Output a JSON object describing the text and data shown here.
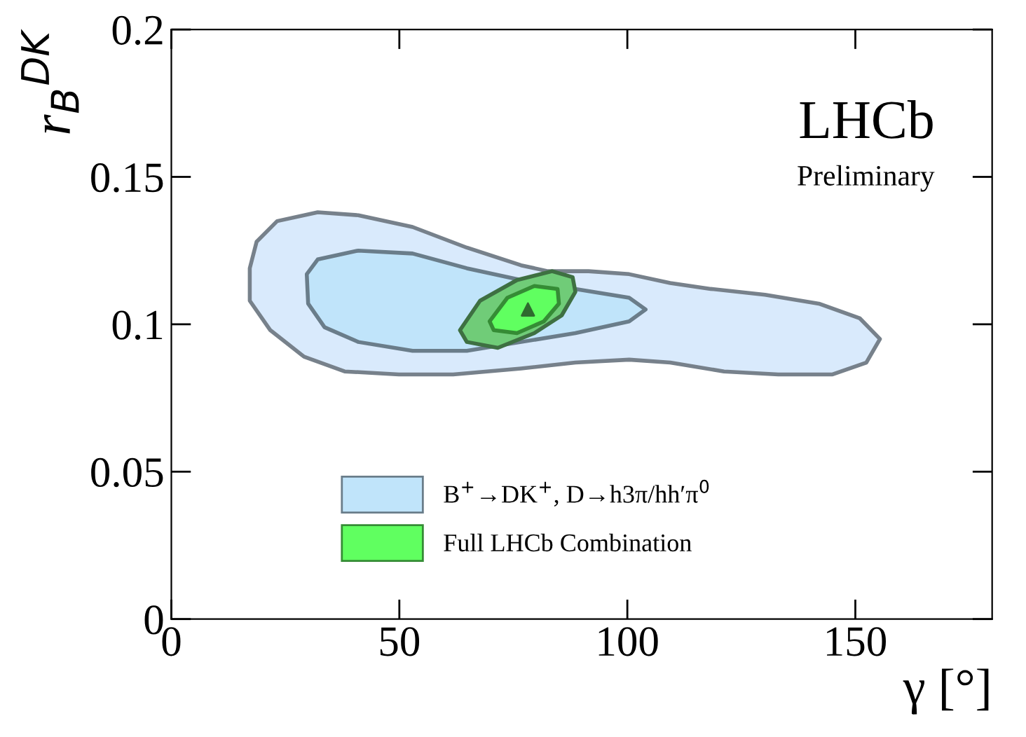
{
  "chart_data": {
    "type": "area",
    "xlabel": "γ [°]",
    "ylabel": "r$_{B}$$^{DK}$",
    "annotations": [
      "LHCb",
      "Preliminary"
    ],
    "xlim": [
      0,
      180
    ],
    "xticks": [
      0,
      50,
      100,
      150
    ],
    "ylim": [
      0,
      0.2
    ],
    "yticks": [
      0,
      0.05,
      0.1,
      0.15,
      0.2
    ],
    "grid": false,
    "legend": "bottom left",
    "series": [
      {
        "color": "#d9eafc",
        "x": [
          17.2,
          18.7,
          23.2,
          32.1,
          41.0,
          52.9,
          64.8,
          76.7,
          82.6,
          91.5,
          100.4,
          109.4,
          118.3,
          130.2,
          142.0,
          151.0,
          155.4,
          152.4,
          145.0,
          133.1,
          121.2,
          109.4,
          100.4,
          88.6,
          76.7,
          61.8,
          49.9,
          38.0,
          29.1,
          21.7,
          17.2
        ],
        "values": [
          0.119,
          0.128,
          0.135,
          0.138,
          0.137,
          0.133,
          0.126,
          0.12,
          0.118,
          0.118,
          0.117,
          0.114,
          0.112,
          0.11,
          0.107,
          0.102,
          0.095,
          0.087,
          0.083,
          0.083,
          0.084,
          0.087,
          0.088,
          0.087,
          0.085,
          0.083,
          0.083,
          0.084,
          0.089,
          0.098,
          0.108
        ]
      },
      {
        "name": "B$^{+}$→DK$^{+}$, D→h3π/hh′π$^{0}$",
        "color": "#c0e4fa",
        "x": [
          29.7,
          32.1,
          41.0,
          52.9,
          64.8,
          76.7,
          88.6,
          100.4,
          104.0,
          100.4,
          88.6,
          76.7,
          64.8,
          52.9,
          41.0,
          33.6,
          30.0
        ],
        "values": [
          0.117,
          0.122,
          0.125,
          0.124,
          0.119,
          0.115,
          0.112,
          0.109,
          0.105,
          0.101,
          0.097,
          0.094,
          0.091,
          0.091,
          0.094,
          0.099,
          0.107
        ]
      },
      {
        "color": "#70cc78",
        "x": [
          63.3,
          67.7,
          75.8,
          83.5,
          88.0,
          88.6,
          85.6,
          79.6,
          71.6,
          64.8
        ],
        "values": [
          0.098,
          0.108,
          0.115,
          0.118,
          0.116,
          0.111,
          0.103,
          0.097,
          0.092,
          0.094
        ]
      },
      {
        "name": "Full LHCb Combination",
        "color": "#60ff60",
        "x": [
          69.8,
          73.7,
          79.6,
          84.7,
          85.0,
          81.7,
          75.8,
          70.7
        ],
        "values": [
          0.101,
          0.109,
          0.113,
          0.112,
          0.107,
          0.101,
          0.097,
          0.098
        ]
      },
      {
        "type": "scatter",
        "color": "#2f6a2f",
        "marker": "triangle",
        "x": [
          78.2
        ],
        "values": [
          0.105
        ]
      }
    ]
  }
}
